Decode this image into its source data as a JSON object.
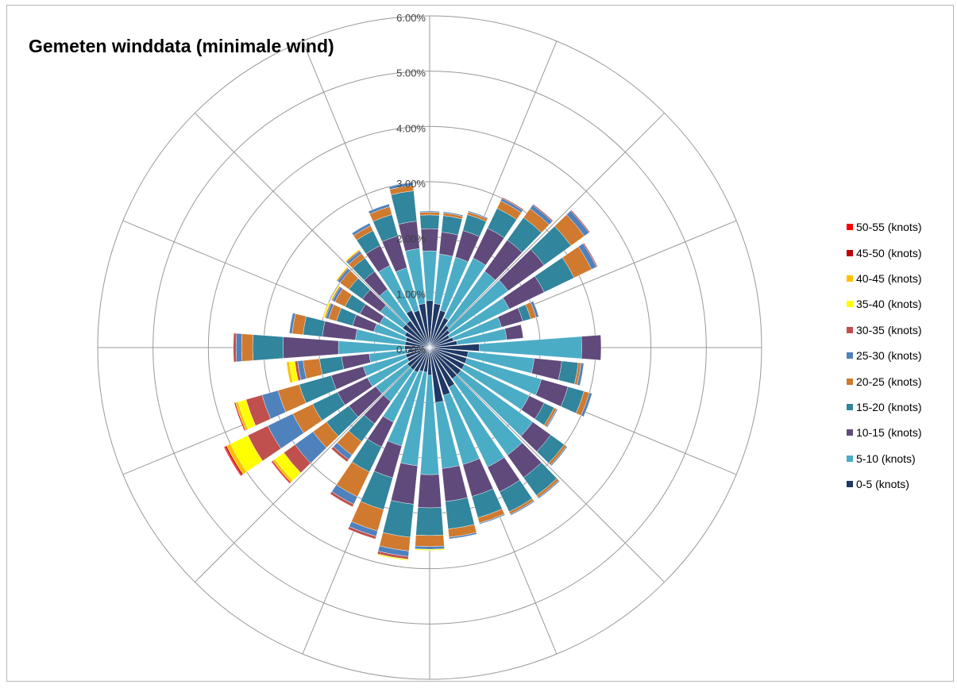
{
  "chart_data": {
    "type": "radar",
    "title": "Gemeten winddata (minimale wind)",
    "r_ticks": [
      "0.00%",
      "1.00%",
      "2.00%",
      "3.00%",
      "4.00%",
      "5.00%",
      "6.00%"
    ],
    "r_lim": [
      0,
      6
    ],
    "grid": true,
    "legend_position": "right",
    "directions_count": 36,
    "directions_deg": [
      0,
      10,
      20,
      30,
      40,
      50,
      60,
      70,
      80,
      90,
      100,
      110,
      120,
      130,
      140,
      150,
      160,
      170,
      180,
      190,
      200,
      210,
      220,
      230,
      240,
      250,
      260,
      270,
      280,
      290,
      300,
      310,
      320,
      330,
      340,
      350
    ],
    "series": [
      {
        "name": "0-5 (knots)",
        "color": "#1f3864",
        "values": [
          0.85,
          0.8,
          0.7,
          0.6,
          0.5,
          0.45,
          0.4,
          0.45,
          0.5,
          0.9,
          0.7,
          0.7,
          0.7,
          0.7,
          0.7,
          0.8,
          0.9,
          1.0,
          0.5,
          0.45,
          0.45,
          0.5,
          0.5,
          0.5,
          0.45,
          0.45,
          0.4,
          0.45,
          0.45,
          0.45,
          0.5,
          0.6,
          0.6,
          0.75,
          0.7,
          0.8
        ]
      },
      {
        "name": "5-10 (knots)",
        "color": "#4bacc6",
        "values": [
          0.9,
          0.9,
          1.0,
          1.2,
          1.2,
          1.3,
          1.2,
          0.9,
          0.9,
          1.85,
          1.2,
          1.4,
          1.3,
          1.6,
          1.7,
          1.6,
          1.3,
          1.2,
          1.8,
          1.7,
          1.4,
          1.0,
          0.7,
          0.7,
          0.8,
          0.8,
          0.7,
          1.2,
          0.9,
          0.6,
          0.5,
          0.5,
          0.7,
          0.9,
          0.8,
          1.0
        ]
      },
      {
        "name": "10-15 (knots)",
        "color": "#604a7b",
        "values": [
          0.4,
          0.4,
          0.5,
          0.6,
          0.7,
          0.8,
          0.7,
          0.4,
          0.3,
          0.35,
          0.5,
          0.5,
          0.3,
          0.4,
          0.5,
          0.5,
          0.6,
          0.6,
          0.6,
          0.7,
          0.6,
          0.5,
          0.5,
          0.6,
          0.6,
          0.6,
          0.5,
          1.0,
          0.6,
          0.4,
          0.4,
          0.4,
          0.4,
          0.4,
          0.6,
          0.5
        ]
      },
      {
        "name": "15-20 (knots)",
        "color": "#31859c",
        "values": [
          0.25,
          0.3,
          0.3,
          0.4,
          0.5,
          0.6,
          0.6,
          0.15,
          0,
          0,
          0.3,
          0.3,
          0.2,
          0.3,
          0.4,
          0.4,
          0.4,
          0.5,
          0.5,
          0.6,
          0.6,
          0.5,
          0.4,
          0.5,
          0.5,
          0.6,
          0.4,
          0.55,
          0.35,
          0.3,
          0.3,
          0.3,
          0.3,
          0.3,
          0.4,
          0.55
        ]
      },
      {
        "name": "20-25 (knots)",
        "color": "#d07a2f",
        "values": [
          0.05,
          0.05,
          0.05,
          0.15,
          0.2,
          0.3,
          0.35,
          0.1,
          0,
          0,
          0.05,
          0.1,
          0.05,
          0.05,
          0.05,
          0.05,
          0.1,
          0.15,
          0.2,
          0.25,
          0.4,
          0.5,
          0.3,
          0.3,
          0.4,
          0.4,
          0.3,
          0.2,
          0.2,
          0.15,
          0.2,
          0.2,
          0.1,
          0.1,
          0.15,
          0.1
        ]
      },
      {
        "name": "25-30 (knots)",
        "color": "#4f81bd",
        "values": [
          0.02,
          0.02,
          0.02,
          0.05,
          0.08,
          0.1,
          0.1,
          0.05,
          0,
          0,
          0.05,
          0.05,
          0.02,
          0.02,
          0.02,
          0.02,
          0.02,
          0.03,
          0.05,
          0.1,
          0.1,
          0.15,
          0.1,
          0.4,
          0.5,
          0.3,
          0.1,
          0.1,
          0.05,
          0.05,
          0.05,
          0.05,
          0.05,
          0.05,
          0.05,
          0.05
        ]
      },
      {
        "name": "30-35 (knots)",
        "color": "#c0504d",
        "values": [
          0,
          0,
          0,
          0.02,
          0.02,
          0.02,
          0.02,
          0,
          0,
          0,
          0,
          0,
          0,
          0,
          0,
          0,
          0,
          0,
          0,
          0.05,
          0.05,
          0.05,
          0.05,
          0.25,
          0.4,
          0.3,
          0.05,
          0.05,
          0,
          0.02,
          0.02,
          0.02,
          0.02,
          0,
          0,
          0
        ]
      },
      {
        "name": "35-40 (knots)",
        "color": "#ffff00",
        "values": [
          0,
          0,
          0,
          0,
          0,
          0,
          0,
          0,
          0,
          0,
          0,
          0,
          0,
          0,
          0,
          0,
          0,
          0,
          0.02,
          0.02,
          0,
          0,
          0,
          0.2,
          0.35,
          0.15,
          0.1,
          0,
          0,
          0.03,
          0.02,
          0.02,
          0.02,
          0,
          0,
          0
        ]
      },
      {
        "name": "40-45 (knots)",
        "color": "#ffc000",
        "values": [
          0,
          0,
          0,
          0,
          0,
          0,
          0,
          0,
          0,
          0,
          0,
          0,
          0,
          0,
          0,
          0,
          0,
          0,
          0,
          0,
          0,
          0,
          0,
          0.05,
          0.08,
          0.05,
          0.05,
          0,
          0,
          0,
          0,
          0,
          0,
          0,
          0,
          0
        ]
      },
      {
        "name": "45-50 (knots)",
        "color": "#c00000",
        "values": [
          0,
          0,
          0,
          0,
          0,
          0,
          0,
          0,
          0,
          0,
          0,
          0,
          0,
          0,
          0,
          0,
          0,
          0,
          0,
          0,
          0,
          0,
          0,
          0.02,
          0.03,
          0.02,
          0,
          0,
          0,
          0,
          0,
          0,
          0,
          0,
          0,
          0
        ]
      },
      {
        "name": "50-55 (knots)",
        "color": "#ff0000",
        "values": [
          0,
          0,
          0,
          0,
          0,
          0,
          0,
          0,
          0,
          0,
          0,
          0,
          0,
          0,
          0,
          0,
          0,
          0,
          0,
          0,
          0,
          0,
          0,
          0.01,
          0.02,
          0,
          0,
          0,
          0,
          0,
          0,
          0,
          0,
          0,
          0,
          0
        ]
      }
    ]
  }
}
